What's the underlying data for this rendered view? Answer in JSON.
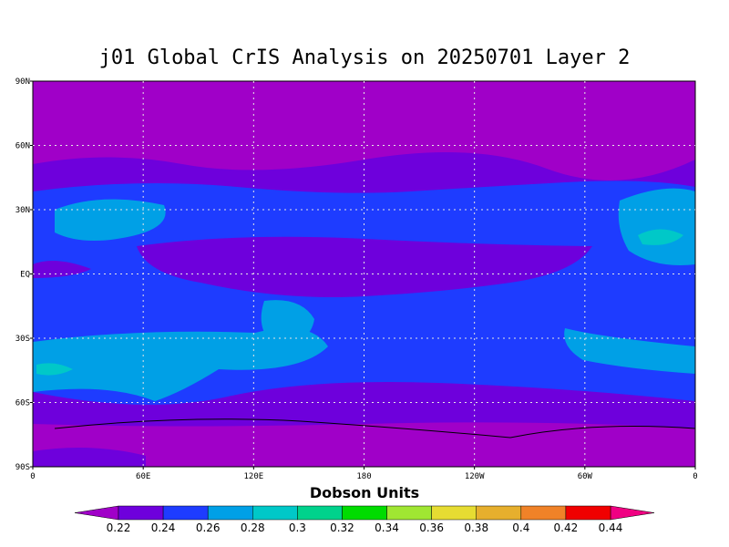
{
  "title": "j01 Global CrIS Analysis on 20250701 Layer 2",
  "y_axis_labels": [
    "90N",
    "60N",
    "30N",
    "EQ",
    "30S",
    "60S",
    "90S"
  ],
  "x_axis_labels": [
    "0",
    "60E",
    "120E",
    "180",
    "120W",
    "60W",
    "0"
  ],
  "colorbar": {
    "title": "Dobson Units",
    "colors": [
      "#a000c8",
      "#6e00dc",
      "#1e3cff",
      "#00a0e6",
      "#00c8c8",
      "#00d28c",
      "#00dc00",
      "#a0e632",
      "#e6dc32",
      "#e6af2d",
      "#f08228",
      "#f00000",
      "#f00082"
    ],
    "labels": [
      "0.22",
      "0.24",
      "0.26",
      "0.28",
      "0.3",
      "0.32",
      "0.34",
      "0.36",
      "0.38",
      "0.4",
      "0.42",
      "0.44"
    ]
  }
}
